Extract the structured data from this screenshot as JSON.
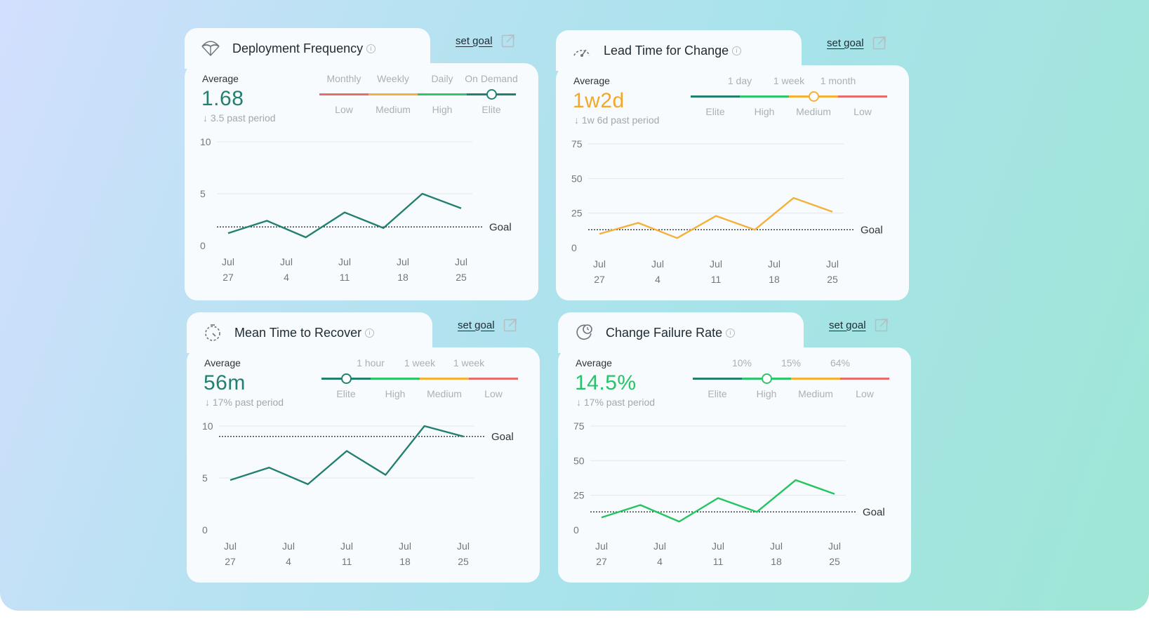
{
  "cards": [
    {
      "title": "Deployment Frequency",
      "info": "i",
      "icon": "parachute-icon",
      "set_goal": "set goal",
      "avg_label": "Average",
      "avg_value": "1.68",
      "avg_color": "#237f70",
      "past": "↓ 3.5 past period",
      "scale": {
        "top_labels": [
          "Monthly",
          "Weekly",
          "Daily",
          "On Demand"
        ],
        "bottom_labels": [
          "Low",
          "Medium",
          "High",
          "Elite"
        ],
        "segment_colors": [
          "#e76c6c",
          "#f4b13a",
          "#2ec56b",
          "#237f70"
        ],
        "selected_index": 3
      },
      "chart_data": {
        "type": "line",
        "line_color": "#237f70",
        "y_ticks": [
          "10",
          "5",
          "0"
        ],
        "ylim": [
          0,
          10
        ],
        "x_labels": [
          [
            "Jul",
            "27"
          ],
          [
            "Jul",
            "4"
          ],
          [
            "Jul",
            "11"
          ],
          [
            "Jul",
            "18"
          ],
          [
            "Jul",
            "25"
          ]
        ],
        "values": [
          1.2,
          2.4,
          0.8,
          3.2,
          1.7,
          5.0,
          3.6
        ],
        "goal_value": 1.8,
        "goal_label": "Goal"
      }
    },
    {
      "title": "Lead Time for Change",
      "info": "i",
      "icon": "gauge-icon",
      "set_goal": "set goal",
      "avg_label": "Average",
      "avg_value": "1w2d",
      "avg_color": "#f2a72a",
      "past": "↓ 1w 6d past period",
      "scale": {
        "top_labels": [
          "1 day",
          "1 week",
          "1 month"
        ],
        "bottom_labels": [
          "Elite",
          "High",
          "Medium",
          "Low"
        ],
        "segment_colors": [
          "#237f70",
          "#2ec56b",
          "#f4b13a",
          "#e76c6c"
        ],
        "selected_index": 2
      },
      "chart_data": {
        "type": "line",
        "line_color": "#f4b13a",
        "y_ticks": [
          "75",
          "50",
          "25",
          "0"
        ],
        "ylim": [
          0,
          75
        ],
        "x_labels": [
          [
            "Jul",
            "27"
          ],
          [
            "Jul",
            "4"
          ],
          [
            "Jul",
            "11"
          ],
          [
            "Jul",
            "18"
          ],
          [
            "Jul",
            "25"
          ]
        ],
        "values": [
          10,
          18,
          7,
          23,
          13,
          36,
          26
        ],
        "goal_value": 13,
        "goal_label": "Goal"
      }
    },
    {
      "title": "Mean Time to Recover",
      "info": "i",
      "icon": "timer-icon",
      "set_goal": "set goal",
      "avg_label": "Average",
      "avg_value": "56m",
      "avg_color": "#237f70",
      "past": "↓ 17% past period",
      "scale": {
        "top_labels": [
          "1 hour",
          "1 week",
          "1 week"
        ],
        "bottom_labels": [
          "Elite",
          "High",
          "Medium",
          "Low"
        ],
        "segment_colors": [
          "#237f70",
          "#2ec56b",
          "#f4b13a",
          "#e76c6c"
        ],
        "selected_index": 0
      },
      "chart_data": {
        "type": "line",
        "line_color": "#237f70",
        "y_ticks": [
          "10",
          "5",
          "0"
        ],
        "ylim": [
          0,
          10
        ],
        "x_labels": [
          [
            "Jul",
            "27"
          ],
          [
            "Jul",
            "4"
          ],
          [
            "Jul",
            "11"
          ],
          [
            "Jul",
            "18"
          ],
          [
            "Jul",
            "25"
          ]
        ],
        "values": [
          4.8,
          6.0,
          4.4,
          7.6,
          5.3,
          10.0,
          9.0
        ],
        "goal_value": 9.0,
        "goal_label": "Goal"
      }
    },
    {
      "title": "Change Failure Rate",
      "info": "i",
      "icon": "refresh-clock-icon",
      "set_goal": "set goal",
      "avg_label": "Average",
      "avg_value": "14.5%",
      "avg_color": "#26c468",
      "past": "↓ 17% past period",
      "scale": {
        "top_labels": [
          "10%",
          "15%",
          "64%"
        ],
        "bottom_labels": [
          "Elite",
          "High",
          "Medium",
          "Low"
        ],
        "segment_colors": [
          "#237f70",
          "#2ec56b",
          "#f4b13a",
          "#e76c6c"
        ],
        "selected_index": 1
      },
      "chart_data": {
        "type": "line",
        "line_color": "#22c55e",
        "y_ticks": [
          "75",
          "50",
          "25",
          "0"
        ],
        "ylim": [
          0,
          75
        ],
        "x_labels": [
          [
            "Jul",
            "27"
          ],
          [
            "Jul",
            "4"
          ],
          [
            "Jul",
            "11"
          ],
          [
            "Jul",
            "18"
          ],
          [
            "Jul",
            "25"
          ]
        ],
        "values": [
          9,
          18,
          6,
          23,
          13,
          36,
          26
        ],
        "goal_value": 13,
        "goal_label": "Goal"
      }
    }
  ]
}
